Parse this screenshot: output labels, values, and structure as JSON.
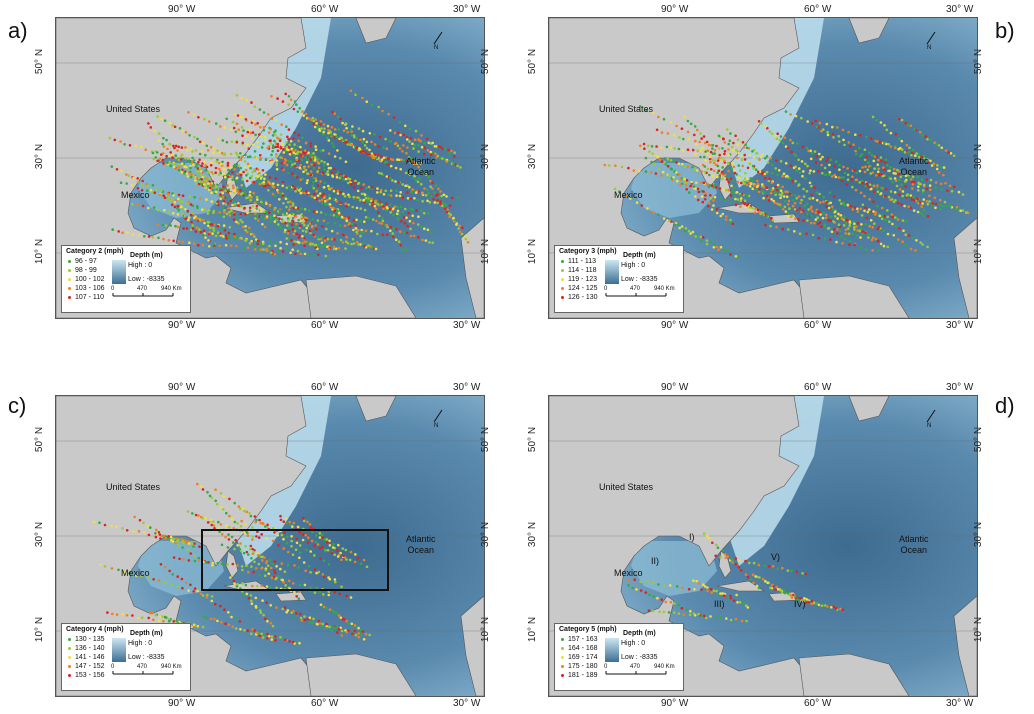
{
  "panels": [
    {
      "id": "a",
      "label": "a)",
      "legend_title": "Category 2 (mph)",
      "classes": [
        {
          "range": "96 - 97",
          "color": "#33aa44"
        },
        {
          "range": "98 - 99",
          "color": "#99cc33"
        },
        {
          "range": "100 - 102",
          "color": "#f2e040"
        },
        {
          "range": "103 - 106",
          "color": "#f08020"
        },
        {
          "range": "107 - 110",
          "color": "#dd2222"
        }
      ]
    },
    {
      "id": "b",
      "label": "b)",
      "legend_title": "Category 3 (mph)",
      "classes": [
        {
          "range": "111 - 113",
          "color": "#33aa44"
        },
        {
          "range": "114 - 118",
          "color": "#99cc33"
        },
        {
          "range": "119 - 123",
          "color": "#f2e040"
        },
        {
          "range": "124 - 125",
          "color": "#f08020"
        },
        {
          "range": "126 - 130",
          "color": "#dd2222"
        }
      ]
    },
    {
      "id": "c",
      "label": "c)",
      "legend_title": "Category 4 (mph)",
      "classes": [
        {
          "range": "130 - 135",
          "color": "#33aa44"
        },
        {
          "range": "136 - 140",
          "color": "#99cc33"
        },
        {
          "range": "141 - 146",
          "color": "#f2e040"
        },
        {
          "range": "147 - 152",
          "color": "#f08020"
        },
        {
          "range": "153 - 156",
          "color": "#dd2222"
        }
      ]
    },
    {
      "id": "d",
      "label": "d)",
      "legend_title": "Category 5 (mph)",
      "classes": [
        {
          "range": "157 - 163",
          "color": "#33aa44"
        },
        {
          "range": "164 - 168",
          "color": "#99cc33"
        },
        {
          "range": "169 - 174",
          "color": "#f2e040"
        },
        {
          "range": "175 - 180",
          "color": "#f08020"
        },
        {
          "range": "181 - 189",
          "color": "#dd2222"
        }
      ]
    }
  ],
  "common": {
    "lon_ticks": [
      "90° W",
      "60° W",
      "30° W"
    ],
    "lat_ticks": [
      "50° N",
      "30° N",
      "10° N"
    ],
    "united_states": "United States",
    "mexico": "Mexico",
    "atlantic": "Atlantic",
    "ocean": "Ocean",
    "depth_title": "Depth (m)",
    "high": "High : 0",
    "low": "Low : -8335",
    "scale_0": "0",
    "scale_1": "470",
    "scale_2": "940 Km",
    "north": "N"
  },
  "panel_d_regions": [
    "I)",
    "II)",
    "III)",
    "IV)",
    "V)"
  ],
  "colors": {
    "land": "#c9c9c9",
    "ocean_deep": "#4f7ea3",
    "ocean_shelf": "#bfe0ee",
    "border": "#555555"
  }
}
